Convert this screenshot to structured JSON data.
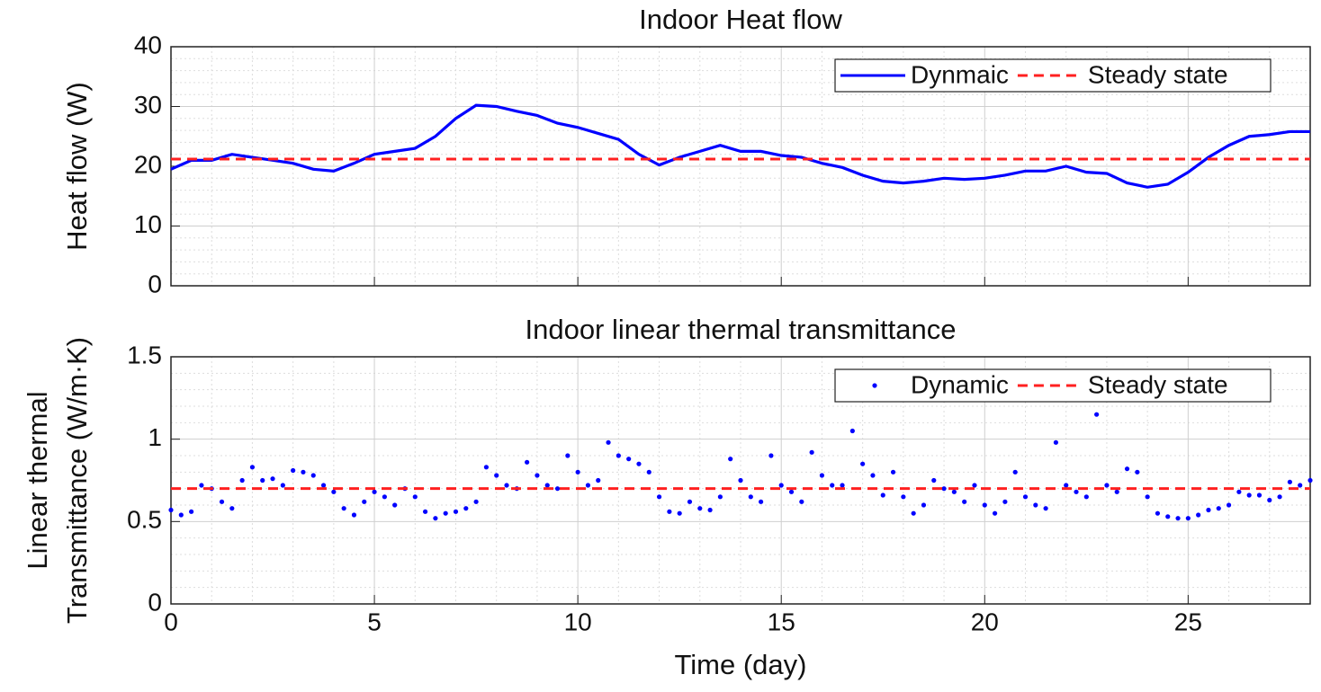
{
  "chart_data": [
    {
      "type": "line",
      "title": "Indoor Heat flow",
      "ylabel": [
        "Heat flow (W)"
      ],
      "xlim": [
        0,
        28
      ],
      "xticks": [
        0,
        5,
        10,
        15,
        20,
        25
      ],
      "ylim": [
        0,
        40
      ],
      "yticks": [
        0,
        10,
        20,
        30,
        40
      ],
      "grid": true,
      "legend": "upper right",
      "series": [
        {
          "name": "Dynmaic",
          "color": "#0000ff",
          "style": "solid",
          "x": [
            0,
            0.5,
            1,
            1.5,
            2,
            2.5,
            3,
            3.5,
            4,
            4.5,
            5,
            5.5,
            6,
            6.5,
            7,
            7.5,
            8,
            8.5,
            9,
            9.5,
            10,
            10.5,
            11,
            11.5,
            12,
            12.5,
            13,
            13.5,
            14,
            14.5,
            15,
            15.5,
            16,
            16.5,
            17,
            17.5,
            18,
            18.5,
            19,
            19.5,
            20,
            20.5,
            21,
            21.5,
            22,
            22.5,
            23,
            23.5,
            24,
            24.5,
            25,
            25.5,
            26,
            26.5,
            27,
            27.5,
            28
          ],
          "values": [
            19.5,
            21,
            21,
            22,
            21.5,
            21,
            20.5,
            19.5,
            19.2,
            20.5,
            22,
            22.5,
            23,
            25,
            28,
            30.2,
            30,
            29.2,
            28.5,
            27.2,
            26.5,
            25.5,
            24.5,
            22,
            20.2,
            21.5,
            22.5,
            23.5,
            22.5,
            22.5,
            21.8,
            21.5,
            20.5,
            19.8,
            18.5,
            17.5,
            17.2,
            17.5,
            18,
            17.8,
            18,
            18.5,
            19.2,
            19.2,
            20,
            19,
            18.8,
            17.2,
            16.5,
            17,
            19,
            21.5,
            23.5,
            25,
            25.3,
            25.8,
            25.8
          ]
        },
        {
          "name": "Steady state",
          "color": "#ff2020",
          "style": "dashed",
          "x": [
            0,
            28
          ],
          "values": [
            21.2,
            21.2
          ]
        }
      ]
    },
    {
      "type": "scatter",
      "title": "Indoor linear thermal transmittance",
      "ylabel": [
        "Linear thermal",
        "Transmittance (W/m·K)"
      ],
      "xlabel": "Time (day)",
      "xlim": [
        0,
        28
      ],
      "xticks": [
        0,
        5,
        10,
        15,
        20,
        25
      ],
      "ylim": [
        0,
        1.5
      ],
      "yticks": [
        0,
        0.5,
        1,
        1.5
      ],
      "grid": true,
      "legend": "upper right",
      "series": [
        {
          "name": "Dynamic",
          "color": "#0000ff",
          "style": "dots",
          "x": [
            0,
            0.25,
            0.5,
            0.75,
            1,
            1.25,
            1.5,
            1.75,
            2,
            2.25,
            2.5,
            2.75,
            3,
            3.25,
            3.5,
            3.75,
            4,
            4.25,
            4.5,
            4.75,
            5,
            5.25,
            5.5,
            5.75,
            6,
            6.25,
            6.5,
            6.75,
            7,
            7.25,
            7.5,
            7.75,
            8,
            8.25,
            8.5,
            8.75,
            9,
            9.25,
            9.5,
            9.75,
            10,
            10.25,
            10.5,
            10.75,
            11,
            11.25,
            11.5,
            11.75,
            12,
            12.25,
            12.5,
            12.75,
            13,
            13.25,
            13.5,
            13.75,
            14,
            14.25,
            14.5,
            14.75,
            15,
            15.25,
            15.5,
            15.75,
            16,
            16.25,
            16.5,
            16.75,
            17,
            17.25,
            17.5,
            17.75,
            18,
            18.25,
            18.5,
            18.75,
            19,
            19.25,
            19.5,
            19.75,
            20,
            20.25,
            20.5,
            20.75,
            21,
            21.25,
            21.5,
            21.75,
            22,
            22.25,
            22.5,
            22.75,
            23,
            23.25,
            23.5,
            23.75,
            24,
            24.25,
            24.5,
            24.75,
            25,
            25.25,
            25.5,
            25.75,
            26,
            26.25,
            26.5,
            26.75,
            27,
            27.25,
            27.5,
            27.75,
            28
          ],
          "values": [
            0.57,
            0.54,
            0.56,
            0.72,
            0.7,
            0.62,
            0.58,
            0.75,
            0.83,
            0.75,
            0.76,
            0.72,
            0.81,
            0.8,
            0.78,
            0.72,
            0.68,
            0.58,
            0.54,
            0.62,
            0.68,
            0.65,
            0.6,
            0.7,
            0.65,
            0.56,
            0.52,
            0.55,
            0.56,
            0.58,
            0.62,
            0.83,
            0.78,
            0.72,
            0.7,
            0.86,
            0.78,
            0.72,
            0.7,
            0.9,
            0.8,
            0.72,
            0.75,
            0.98,
            0.9,
            0.88,
            0.85,
            0.8,
            0.65,
            0.56,
            0.55,
            0.62,
            0.58,
            0.57,
            0.65,
            0.88,
            0.75,
            0.65,
            0.62,
            0.9,
            0.72,
            0.68,
            0.62,
            0.92,
            0.78,
            0.72,
            0.72,
            1.05,
            0.85,
            0.78,
            0.66,
            0.8,
            0.65,
            0.55,
            0.6,
            0.75,
            0.7,
            0.68,
            0.62,
            0.72,
            0.6,
            0.55,
            0.62,
            0.8,
            0.65,
            0.6,
            0.58,
            0.98,
            0.72,
            0.68,
            0.65,
            1.15,
            0.72,
            0.68,
            0.82,
            0.8,
            0.65,
            0.55,
            0.53,
            0.52,
            0.52,
            0.54,
            0.57,
            0.58,
            0.6,
            0.68,
            0.66,
            0.66,
            0.63,
            0.65,
            0.74,
            0.72,
            0.75
          ]
        },
        {
          "name": "Steady state",
          "color": "#ff2020",
          "style": "dashed",
          "x": [
            0,
            28
          ],
          "values": [
            0.7,
            0.7
          ]
        }
      ]
    }
  ]
}
